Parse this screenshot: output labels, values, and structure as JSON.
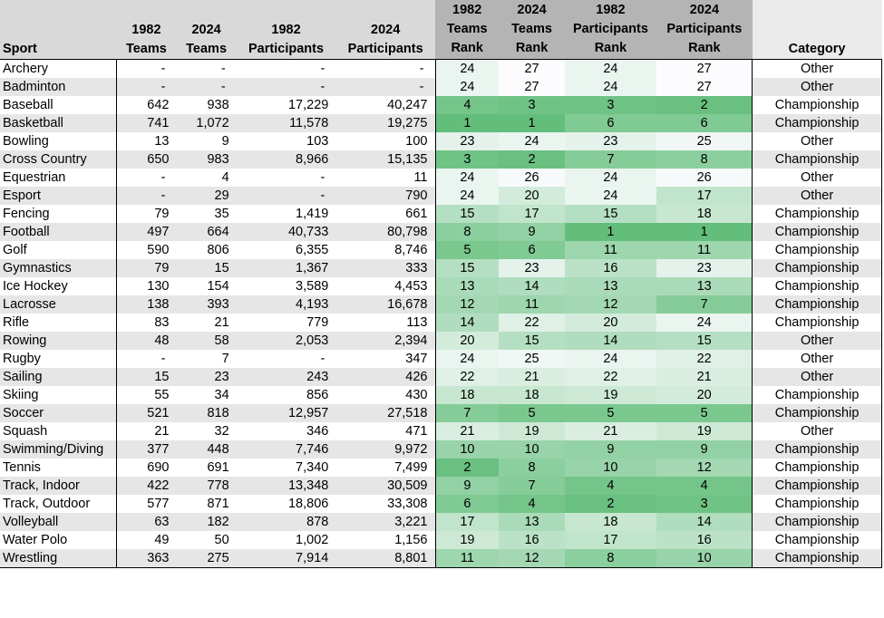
{
  "table": {
    "headers": {
      "sport": "Sport",
      "teams_1982": "1982\nTeams",
      "teams_2024": "2024\nTeams",
      "participants_1982": "1982\nParticipants",
      "participants_2024": "2024\nParticipants",
      "teams_rank_1982": "1982\nTeams\nRank",
      "teams_rank_2024": "2024\nTeams\nRank",
      "participants_rank_1982": "1982\nParticipants\nRank",
      "participants_rank_2024": "2024\nParticipants\nRank",
      "category": "Category"
    },
    "rank_color_scale": {
      "best": "#63be7b",
      "worst": "#fcfcff"
    },
    "rows": [
      [
        "Archery",
        "-",
        "-",
        "-",
        "-",
        24,
        27,
        24,
        27,
        "Other"
      ],
      [
        "Badminton",
        "-",
        "-",
        "-",
        "-",
        24,
        27,
        24,
        27,
        "Other"
      ],
      [
        "Baseball",
        "642",
        "938",
        "17,229",
        "40,247",
        4,
        3,
        3,
        2,
        "Championship"
      ],
      [
        "Basketball",
        "741",
        "1,072",
        "11,578",
        "19,275",
        1,
        1,
        6,
        6,
        "Championship"
      ],
      [
        "Bowling",
        "13",
        "9",
        "103",
        "100",
        23,
        24,
        23,
        25,
        "Other"
      ],
      [
        "Cross Country",
        "650",
        "983",
        "8,966",
        "15,135",
        3,
        2,
        7,
        8,
        "Championship"
      ],
      [
        "Equestrian",
        "-",
        "4",
        "-",
        "11",
        24,
        26,
        24,
        26,
        "Other"
      ],
      [
        "Esport",
        "-",
        "29",
        "-",
        "790",
        24,
        20,
        24,
        17,
        "Other"
      ],
      [
        "Fencing",
        "79",
        "35",
        "1,419",
        "661",
        15,
        17,
        15,
        18,
        "Championship"
      ],
      [
        "Football",
        "497",
        "664",
        "40,733",
        "80,798",
        8,
        9,
        1,
        1,
        "Championship"
      ],
      [
        "Golf",
        "590",
        "806",
        "6,355",
        "8,746",
        5,
        6,
        11,
        11,
        "Championship"
      ],
      [
        "Gymnastics",
        "79",
        "15",
        "1,367",
        "333",
        15,
        23,
        16,
        23,
        "Championship"
      ],
      [
        "Ice Hockey",
        "130",
        "154",
        "3,589",
        "4,453",
        13,
        14,
        13,
        13,
        "Championship"
      ],
      [
        "Lacrosse",
        "138",
        "393",
        "4,193",
        "16,678",
        12,
        11,
        12,
        7,
        "Championship"
      ],
      [
        "Rifle",
        "83",
        "21",
        "779",
        "113",
        14,
        22,
        20,
        24,
        "Championship"
      ],
      [
        "Rowing",
        "48",
        "58",
        "2,053",
        "2,394",
        20,
        15,
        14,
        15,
        "Other"
      ],
      [
        "Rugby",
        "-",
        "7",
        "-",
        "347",
        24,
        25,
        24,
        22,
        "Other"
      ],
      [
        "Sailing",
        "15",
        "23",
        "243",
        "426",
        22,
        21,
        22,
        21,
        "Other"
      ],
      [
        "Skiing",
        "55",
        "34",
        "856",
        "430",
        18,
        18,
        19,
        20,
        "Championship"
      ],
      [
        "Soccer",
        "521",
        "818",
        "12,957",
        "27,518",
        7,
        5,
        5,
        5,
        "Championship"
      ],
      [
        "Squash",
        "21",
        "32",
        "346",
        "471",
        21,
        19,
        21,
        19,
        "Other"
      ],
      [
        "Swimming/Diving",
        "377",
        "448",
        "7,746",
        "9,972",
        10,
        10,
        9,
        9,
        "Championship"
      ],
      [
        "Tennis",
        "690",
        "691",
        "7,340",
        "7,499",
        2,
        8,
        10,
        12,
        "Championship"
      ],
      [
        "Track, Indoor",
        "422",
        "778",
        "13,348",
        "30,509",
        9,
        7,
        4,
        4,
        "Championship"
      ],
      [
        "Track, Outdoor",
        "577",
        "871",
        "18,806",
        "33,308",
        6,
        4,
        2,
        3,
        "Championship"
      ],
      [
        "Volleyball",
        "63",
        "182",
        "878",
        "3,221",
        17,
        13,
        18,
        14,
        "Championship"
      ],
      [
        "Water Polo",
        "49",
        "50",
        "1,002",
        "1,156",
        19,
        16,
        17,
        16,
        "Championship"
      ],
      [
        "Wrestling",
        "363",
        "275",
        "7,914",
        "8,801",
        11,
        12,
        8,
        10,
        "Championship"
      ]
    ]
  }
}
